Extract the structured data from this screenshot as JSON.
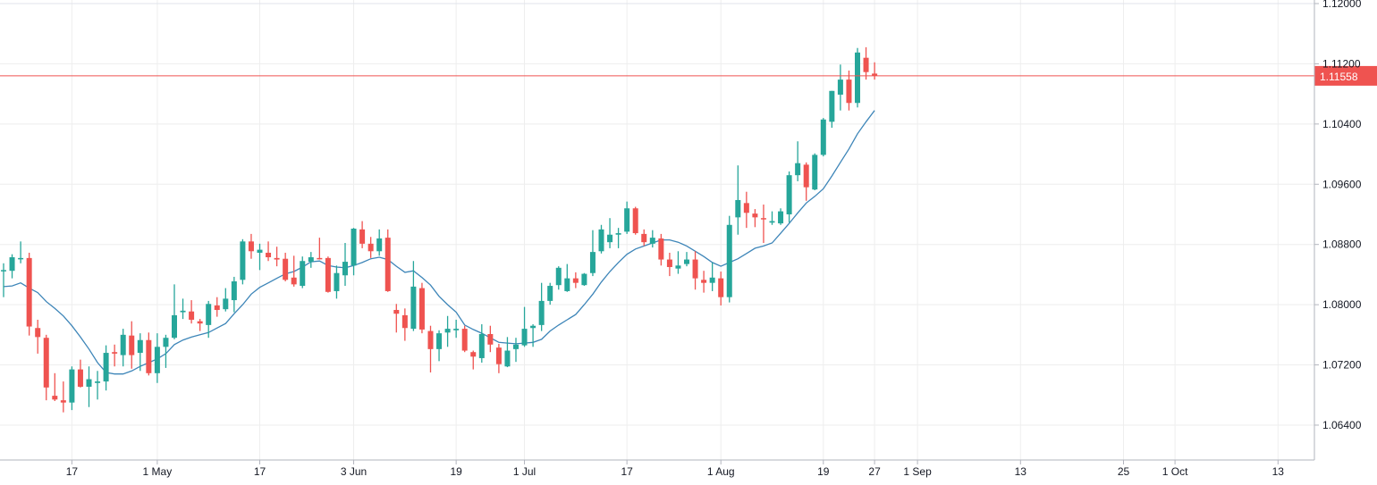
{
  "chart_data": {
    "type": "candlestick",
    "title": "",
    "xlabel": "",
    "ylabel": "",
    "ylim": [
      1.0605,
      1.1205
    ],
    "grid": true,
    "colors": {
      "up": "#26a69a",
      "down": "#ef5350",
      "moving_average": "#3d85b8",
      "price_line": "#ef5350",
      "grid": "#eeeeee",
      "axis": "#b2b5be"
    },
    "y_ticks": [
      "1.12000",
      "1.11200",
      "1.10400",
      "1.09600",
      "1.08800",
      "1.08000",
      "1.07200",
      "1.06400"
    ],
    "x_ticks": [
      {
        "label": "17",
        "date": "2019-04-17"
      },
      {
        "label": "1 May",
        "date": "2019-05-01"
      },
      {
        "label": "17",
        "date": "2019-05-17"
      },
      {
        "label": "3 Jun",
        "date": "2019-06-03"
      },
      {
        "label": "19",
        "date": "2019-06-19"
      },
      {
        "label": "1 Jul",
        "date": "2019-07-01"
      },
      {
        "label": "17",
        "date": "2019-07-17"
      },
      {
        "label": "1 Aug",
        "date": "2019-08-01"
      },
      {
        "label": "19",
        "date": "2019-08-19"
      },
      {
        "label": "27",
        "date": "2019-08-27"
      },
      {
        "label": "1 Sep",
        "date": "2019-09-01"
      },
      {
        "label": "13",
        "date": "2019-09-13"
      },
      {
        "label": "25",
        "date": "2019-09-25"
      },
      {
        "label": "1 Oct",
        "date": "2019-10-01"
      },
      {
        "label": "13",
        "date": "2019-10-13"
      }
    ],
    "current_price": "1.11558",
    "ohlc_columns": [
      "date",
      "open",
      "high",
      "low",
      "close"
    ],
    "ohlc": [
      [
        "2019-04-05",
        1.0845,
        1.0855,
        1.081,
        1.0846
      ],
      [
        "2019-04-08",
        1.0845,
        1.0867,
        1.0835,
        1.0863
      ],
      [
        "2019-04-09",
        1.0861,
        1.0884,
        1.0855,
        1.0862
      ],
      [
        "2019-04-10",
        1.0862,
        1.0869,
        1.0759,
        1.0771
      ],
      [
        "2019-04-11",
        1.0769,
        1.078,
        1.0735,
        1.0757
      ],
      [
        "2019-04-12",
        1.0756,
        1.076,
        1.0673,
        1.069
      ],
      [
        "2019-04-15",
        1.0679,
        1.0709,
        1.0672,
        1.0674
      ],
      [
        "2019-04-16",
        1.0673,
        1.0698,
        1.0657,
        1.067
      ],
      [
        "2019-04-17",
        1.067,
        1.0718,
        1.066,
        1.0714
      ],
      [
        "2019-04-18",
        1.0714,
        1.0727,
        1.069,
        1.0691
      ],
      [
        "2019-04-19",
        1.0691,
        1.0718,
        1.0664,
        1.0701
      ],
      [
        "2019-04-22",
        1.0696,
        1.0712,
        1.0674,
        1.0698
      ],
      [
        "2019-04-23",
        1.0698,
        1.0746,
        1.0686,
        1.0736
      ],
      [
        "2019-04-24",
        1.0737,
        1.0747,
        1.0718,
        1.0735
      ],
      [
        "2019-04-25",
        1.0733,
        1.0768,
        1.0718,
        1.076
      ],
      [
        "2019-04-26",
        1.0759,
        1.0778,
        1.0715,
        1.0733
      ],
      [
        "2019-04-29",
        1.0736,
        1.0762,
        1.0712,
        1.0753
      ],
      [
        "2019-04-30",
        1.0753,
        1.0763,
        1.0706,
        1.0709
      ],
      [
        "2019-05-01",
        1.0709,
        1.0762,
        1.0696,
        1.0744
      ],
      [
        "2019-05-02",
        1.0744,
        1.076,
        1.0716,
        1.0756
      ],
      [
        "2019-05-03",
        1.0756,
        1.0827,
        1.0754,
        1.0786
      ],
      [
        "2019-05-06",
        1.079,
        1.0808,
        1.0781,
        1.0792
      ],
      [
        "2019-05-07",
        1.0791,
        1.0806,
        1.0775,
        1.078
      ],
      [
        "2019-05-08",
        1.0778,
        1.0781,
        1.0765,
        1.0775
      ],
      [
        "2019-05-09",
        1.0773,
        1.0805,
        1.0756,
        1.0801
      ],
      [
        "2019-05-10",
        1.0799,
        1.081,
        1.0784,
        1.0793
      ],
      [
        "2019-05-13",
        1.0794,
        1.0822,
        1.0791,
        1.0808
      ],
      [
        "2019-05-14",
        1.0806,
        1.0837,
        1.079,
        1.0831
      ],
      [
        "2019-05-15",
        1.0833,
        1.0887,
        1.0827,
        1.0884
      ],
      [
        "2019-05-16",
        1.0884,
        1.0894,
        1.0861,
        1.0871
      ],
      [
        "2019-05-17",
        1.0869,
        1.0881,
        1.0846,
        1.0873
      ],
      [
        "2019-05-20",
        1.0869,
        1.0884,
        1.0858,
        1.0863
      ],
      [
        "2019-05-21",
        1.0862,
        1.0877,
        1.0851,
        1.086
      ],
      [
        "2019-05-22",
        1.0861,
        1.0869,
        1.0831,
        1.0833
      ],
      [
        "2019-05-23",
        1.0836,
        1.0865,
        1.0824,
        1.0827
      ],
      [
        "2019-05-24",
        1.0825,
        1.0864,
        1.0822,
        1.0858
      ],
      [
        "2019-05-27",
        1.0857,
        1.087,
        1.0849,
        1.0863
      ],
      [
        "2019-05-28",
        1.0862,
        1.0889,
        1.086,
        1.0861
      ],
      [
        "2019-05-29",
        1.0862,
        1.0864,
        1.0816,
        1.0817
      ],
      [
        "2019-05-30",
        1.0818,
        1.0852,
        1.0808,
        1.0842
      ],
      [
        "2019-05-31",
        1.0839,
        1.0882,
        1.0825,
        1.0857
      ],
      [
        "2019-06-03",
        1.0852,
        1.0902,
        1.0839,
        1.0901
      ],
      [
        "2019-06-04",
        1.09,
        1.0911,
        1.0875,
        1.0881
      ],
      [
        "2019-06-05",
        1.0881,
        1.089,
        1.0862,
        1.0871
      ],
      [
        "2019-06-06",
        1.0871,
        1.09,
        1.0865,
        1.0888
      ],
      [
        "2019-06-07",
        1.0889,
        1.09,
        1.0817,
        1.0818
      ],
      [
        "2019-06-10",
        1.0793,
        1.0801,
        1.0763,
        1.0788
      ],
      [
        "2019-06-11",
        1.0786,
        1.0795,
        1.0752,
        1.0769
      ],
      [
        "2019-06-12",
        1.0768,
        1.0858,
        1.0765,
        1.0824
      ],
      [
        "2019-06-13",
        1.0822,
        1.0829,
        1.0762,
        1.0767
      ],
      [
        "2019-06-14",
        1.0765,
        1.0772,
        1.071,
        1.0741
      ],
      [
        "2019-06-17",
        1.0741,
        1.0766,
        1.0725,
        1.0762
      ],
      [
        "2019-06-18",
        1.0763,
        1.0785,
        1.0744,
        1.0768
      ],
      [
        "2019-06-19",
        1.0766,
        1.078,
        1.0756,
        1.0768
      ],
      [
        "2019-06-20",
        1.0768,
        1.0772,
        1.0737,
        1.0739
      ],
      [
        "2019-06-21",
        1.0737,
        1.0739,
        1.0714,
        1.0731
      ],
      [
        "2019-06-24",
        1.0729,
        1.0774,
        1.0723,
        1.0761
      ],
      [
        "2019-06-25",
        1.0761,
        1.0772,
        1.0737,
        1.0747
      ],
      [
        "2019-06-26",
        1.0743,
        1.0748,
        1.0709,
        1.0721
      ],
      [
        "2019-06-27",
        1.0718,
        1.0757,
        1.0717,
        1.0739
      ],
      [
        "2019-06-28",
        1.0741,
        1.0756,
        1.0724,
        1.0747
      ],
      [
        "2019-07-01",
        1.0746,
        1.0797,
        1.0744,
        1.0768
      ],
      [
        "2019-07-02",
        1.0769,
        1.0774,
        1.0744,
        1.0772
      ],
      [
        "2019-07-03",
        1.0773,
        1.0829,
        1.0765,
        1.0805
      ],
      [
        "2019-07-04",
        1.0805,
        1.0829,
        1.08,
        1.0825
      ],
      [
        "2019-07-05",
        1.0826,
        1.0851,
        1.082,
        1.0849
      ],
      [
        "2019-07-08",
        1.0818,
        1.0854,
        1.0817,
        1.0835
      ],
      [
        "2019-07-09",
        1.0835,
        1.0843,
        1.0822,
        1.0829
      ],
      [
        "2019-07-10",
        1.0826,
        1.0842,
        1.0825,
        1.0841
      ],
      [
        "2019-07-11",
        1.0842,
        1.0899,
        1.0838,
        1.087
      ],
      [
        "2019-07-12",
        1.0871,
        1.0906,
        1.0868,
        1.09
      ],
      [
        "2019-07-15",
        1.0883,
        1.0915,
        1.0875,
        1.0893
      ],
      [
        "2019-07-16",
        1.0893,
        1.0902,
        1.0875,
        1.0895
      ],
      [
        "2019-07-17",
        1.0897,
        1.0937,
        1.0894,
        1.0928
      ],
      [
        "2019-07-18",
        1.0928,
        1.093,
        1.0893,
        1.0895
      ],
      [
        "2019-07-19",
        1.0894,
        1.09,
        1.0878,
        1.0883
      ],
      [
        "2019-07-22",
        1.0881,
        1.0899,
        1.0876,
        1.0889
      ],
      [
        "2019-07-23",
        1.0888,
        1.0894,
        1.0852,
        1.086
      ],
      [
        "2019-07-24",
        1.086,
        1.0869,
        1.0838,
        1.085
      ],
      [
        "2019-07-25",
        1.0848,
        1.0871,
        1.0841,
        1.0852
      ],
      [
        "2019-07-26",
        1.0854,
        1.087,
        1.0851,
        1.086
      ],
      [
        "2019-07-29",
        1.086,
        1.0871,
        1.082,
        1.0835
      ],
      [
        "2019-07-30",
        1.0833,
        1.0845,
        1.0816,
        1.0829
      ],
      [
        "2019-07-31",
        1.0829,
        1.0856,
        1.0818,
        1.0836
      ],
      [
        "2019-08-01",
        1.0835,
        1.0844,
        1.0799,
        1.081
      ],
      [
        "2019-08-02",
        1.081,
        1.0918,
        1.0803,
        1.0906
      ],
      [
        "2019-08-05",
        1.0916,
        1.0985,
        1.0893,
        1.0939
      ],
      [
        "2019-08-06",
        1.0935,
        1.095,
        1.0902,
        1.0922
      ],
      [
        "2019-08-07",
        1.0921,
        1.0927,
        1.0903,
        1.0916
      ],
      [
        "2019-08-08",
        1.0915,
        1.0933,
        1.0882,
        1.0914
      ],
      [
        "2019-08-09",
        1.0909,
        1.0924,
        1.0906,
        1.0911
      ],
      [
        "2019-08-12",
        1.0908,
        1.0928,
        1.0906,
        1.0924
      ],
      [
        "2019-08-13",
        1.092,
        1.0977,
        1.0909,
        1.0972
      ],
      [
        "2019-08-14",
        1.0972,
        1.1017,
        1.0964,
        1.0988
      ],
      [
        "2019-08-15",
        1.0986,
        1.0989,
        1.0938,
        1.0956
      ],
      [
        "2019-08-16",
        1.0953,
        1.1001,
        1.0952,
        1.0999
      ],
      [
        "2019-08-19",
        1.0999,
        1.1048,
        1.0997,
        1.1046
      ],
      [
        "2019-08-20",
        1.1043,
        1.1084,
        1.1035,
        1.1084
      ],
      [
        "2019-08-21",
        1.1079,
        1.1119,
        1.1058,
        1.1099
      ],
      [
        "2019-08-22",
        1.1099,
        1.1111,
        1.1058,
        1.1068
      ],
      [
        "2019-08-23",
        1.1068,
        1.1141,
        1.1062,
        1.1135
      ],
      [
        "2019-08-26",
        1.1128,
        1.1142,
        1.1099,
        1.1109
      ],
      [
        "2019-08-27",
        1.1107,
        1.1122,
        1.1099,
        1.1104
      ]
    ],
    "moving_average": [
      1.0824,
      1.0825,
      1.0829,
      1.0822,
      1.0816,
      1.0804,
      1.0795,
      1.0785,
      1.0772,
      1.0757,
      1.0741,
      1.0723,
      1.071,
      1.0708,
      1.0708,
      1.0712,
      1.0718,
      1.0723,
      1.0728,
      1.0735,
      1.0747,
      1.0753,
      1.0757,
      1.076,
      1.0763,
      1.0769,
      1.0775,
      1.0788,
      1.08,
      1.0814,
      1.0823,
      1.0829,
      1.0835,
      1.0841,
      1.0844,
      1.085,
      1.0857,
      1.0858,
      1.0852,
      1.085,
      1.0849,
      1.0852,
      1.0856,
      1.0861,
      1.0863,
      1.086,
      1.0851,
      1.0843,
      1.0845,
      1.0836,
      1.0826,
      1.0811,
      1.08,
      1.079,
      1.0773,
      1.0767,
      1.0762,
      1.0756,
      1.075,
      1.0749,
      1.0748,
      1.0749,
      1.075,
      1.0754,
      1.0765,
      1.0773,
      1.078,
      1.0787,
      1.08,
      1.0814,
      1.083,
      1.0844,
      1.0856,
      1.0867,
      1.0874,
      1.0878,
      1.0882,
      1.0886,
      1.0886,
      1.0883,
      1.0878,
      1.0871,
      1.0864,
      1.0856,
      1.0851,
      1.0856,
      1.0861,
      1.0868,
      1.0875,
      1.0878,
      1.0882,
      1.0895,
      1.0908,
      1.0922,
      1.0935,
      1.0944,
      1.0954,
      1.0971,
      1.0989,
      1.1007,
      1.1027,
      1.1043,
      1.1058
    ]
  }
}
